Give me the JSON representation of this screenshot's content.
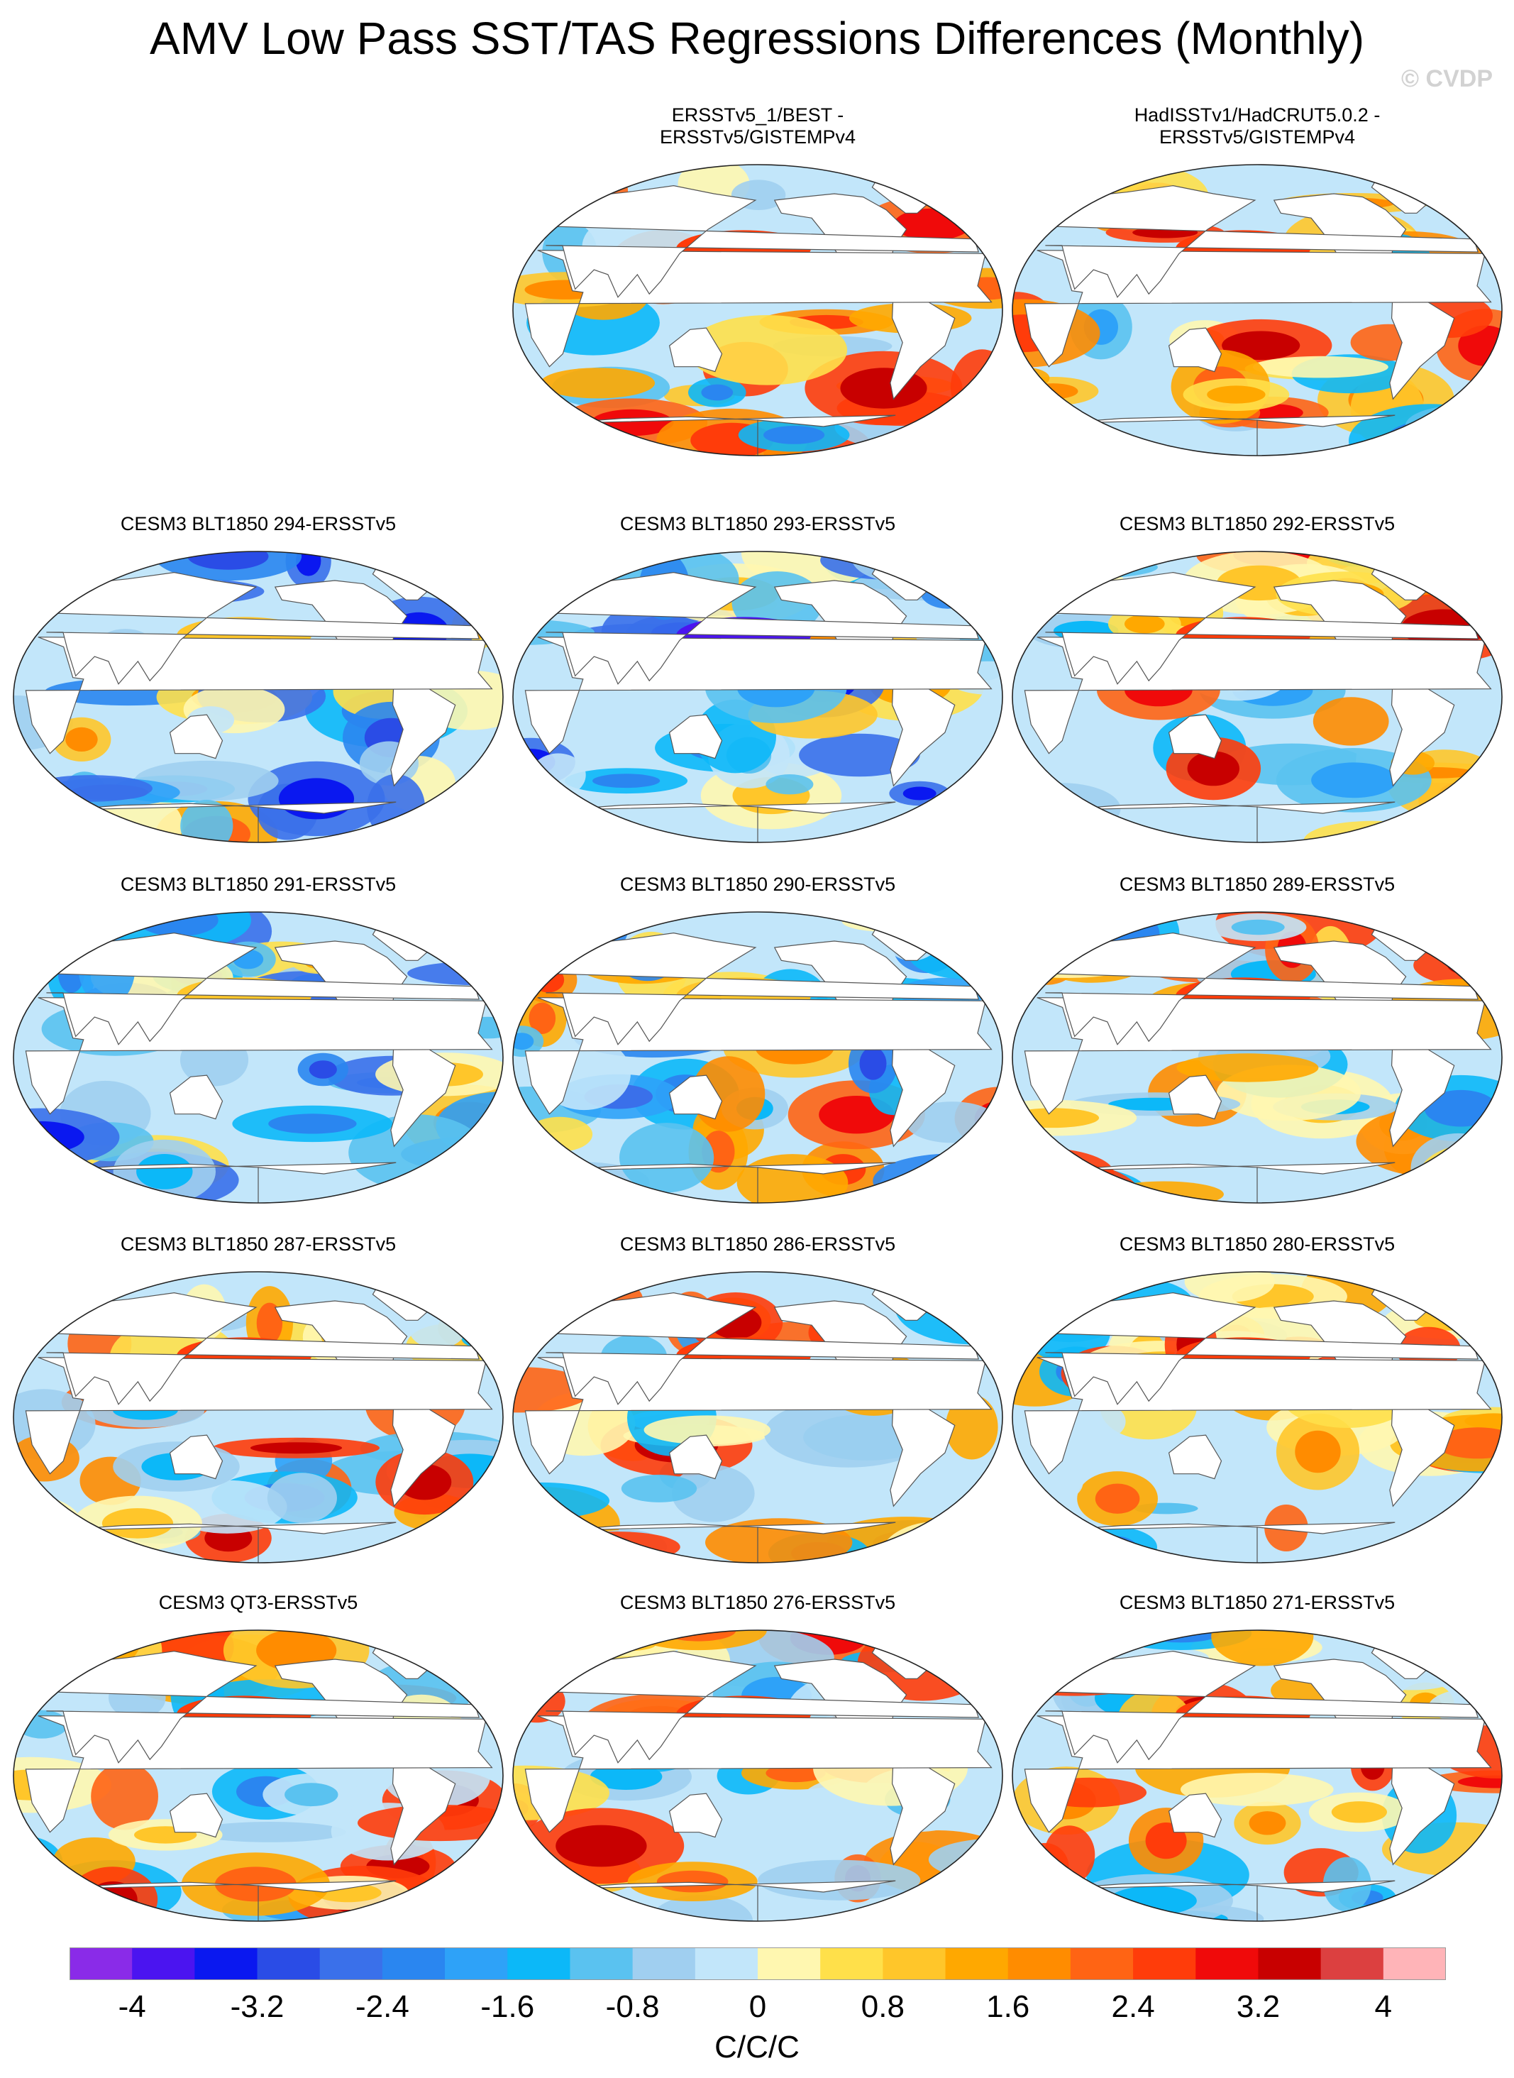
{
  "page": {
    "title": "AMV Low Pass SST/TAS Regressions Differences (Monthly)",
    "copyright": "© CVDP"
  },
  "chart_data": {
    "type": "heatmap",
    "projection": "Robinson (global map)",
    "panels": [
      {
        "title_lines": [
          "ERSSTv5_1/BEST -",
          "ERSSTv5/GISTEMPv4"
        ],
        "dominant": "mixed, warm N Pacific"
      },
      {
        "title_lines": [
          "HadISSTv1/HadCRUT5.0.2 -",
          "ERSSTv5/GISTEMPv4"
        ],
        "dominant": "mixed, warm N Pacific"
      },
      {
        "title_lines": [
          "CESM3 BLT1850 294-ERSSTv5"
        ],
        "dominant": "cool tropical Pacific"
      },
      {
        "title_lines": [
          "CESM3 BLT1850 293-ERSSTv5"
        ],
        "dominant": "cool N Pacific"
      },
      {
        "title_lines": [
          "CESM3 BLT1850 292-ERSSTv5"
        ],
        "dominant": "warm N Pacific"
      },
      {
        "title_lines": [
          "CESM3 BLT1850 291-ERSSTv5"
        ],
        "dominant": "cool"
      },
      {
        "title_lines": [
          "CESM3 BLT1850 290-ERSSTv5"
        ],
        "dominant": "strong mixed"
      },
      {
        "title_lines": [
          "CESM3 BLT1850 289-ERSSTv5"
        ],
        "dominant": "warm N Pacific"
      },
      {
        "title_lines": [
          "CESM3 BLT1850 287-ERSSTv5"
        ],
        "dominant": "warm N Pacific, cool S Ocean"
      },
      {
        "title_lines": [
          "CESM3 BLT1850 286-ERSSTv5"
        ],
        "dominant": "warm"
      },
      {
        "title_lines": [
          "CESM3 BLT1850 280-ERSSTv5"
        ],
        "dominant": "warm N Pacific"
      },
      {
        "title_lines": [
          "CESM3 QT3-ERSSTv5"
        ],
        "dominant": "warm N Pacific"
      },
      {
        "title_lines": [
          "CESM3 BLT1850 276-ERSSTv5"
        ],
        "dominant": "warm N Pacific"
      },
      {
        "title_lines": [
          "CESM3 BLT1850 271-ERSSTv5"
        ],
        "dominant": "warm N Pacific"
      }
    ],
    "colorbar": {
      "units": "C/C/C",
      "levels": [
        -4.4,
        -4,
        -3.6,
        -3.2,
        -2.8,
        -2.4,
        -2,
        -1.6,
        -1.2,
        -0.8,
        -0.4,
        0,
        0.4,
        0.8,
        1.2,
        1.6,
        2,
        2.4,
        2.8,
        3.2,
        3.6,
        4,
        4.4
      ],
      "tick_labels": [
        "-4",
        "-3.2",
        "-2.4",
        "-1.6",
        "-0.8",
        "0",
        "0.8",
        "1.6",
        "2.4",
        "3.2",
        "4"
      ],
      "colors": [
        "#8a2be8",
        "#4b14f0",
        "#0a18f0",
        "#2a4ce6",
        "#3a70ea",
        "#2a86f0",
        "#2ea2f8",
        "#0cb8f8",
        "#5ac2f0",
        "#a0cff0",
        "#c2e6fa",
        "#fff7b0",
        "#ffe04a",
        "#ffc62a",
        "#ffa800",
        "#ff8c00",
        "#ff6414",
        "#ff3c0a",
        "#f00a0a",
        "#c80000",
        "#dc4040",
        "#ffb4b8"
      ]
    }
  }
}
